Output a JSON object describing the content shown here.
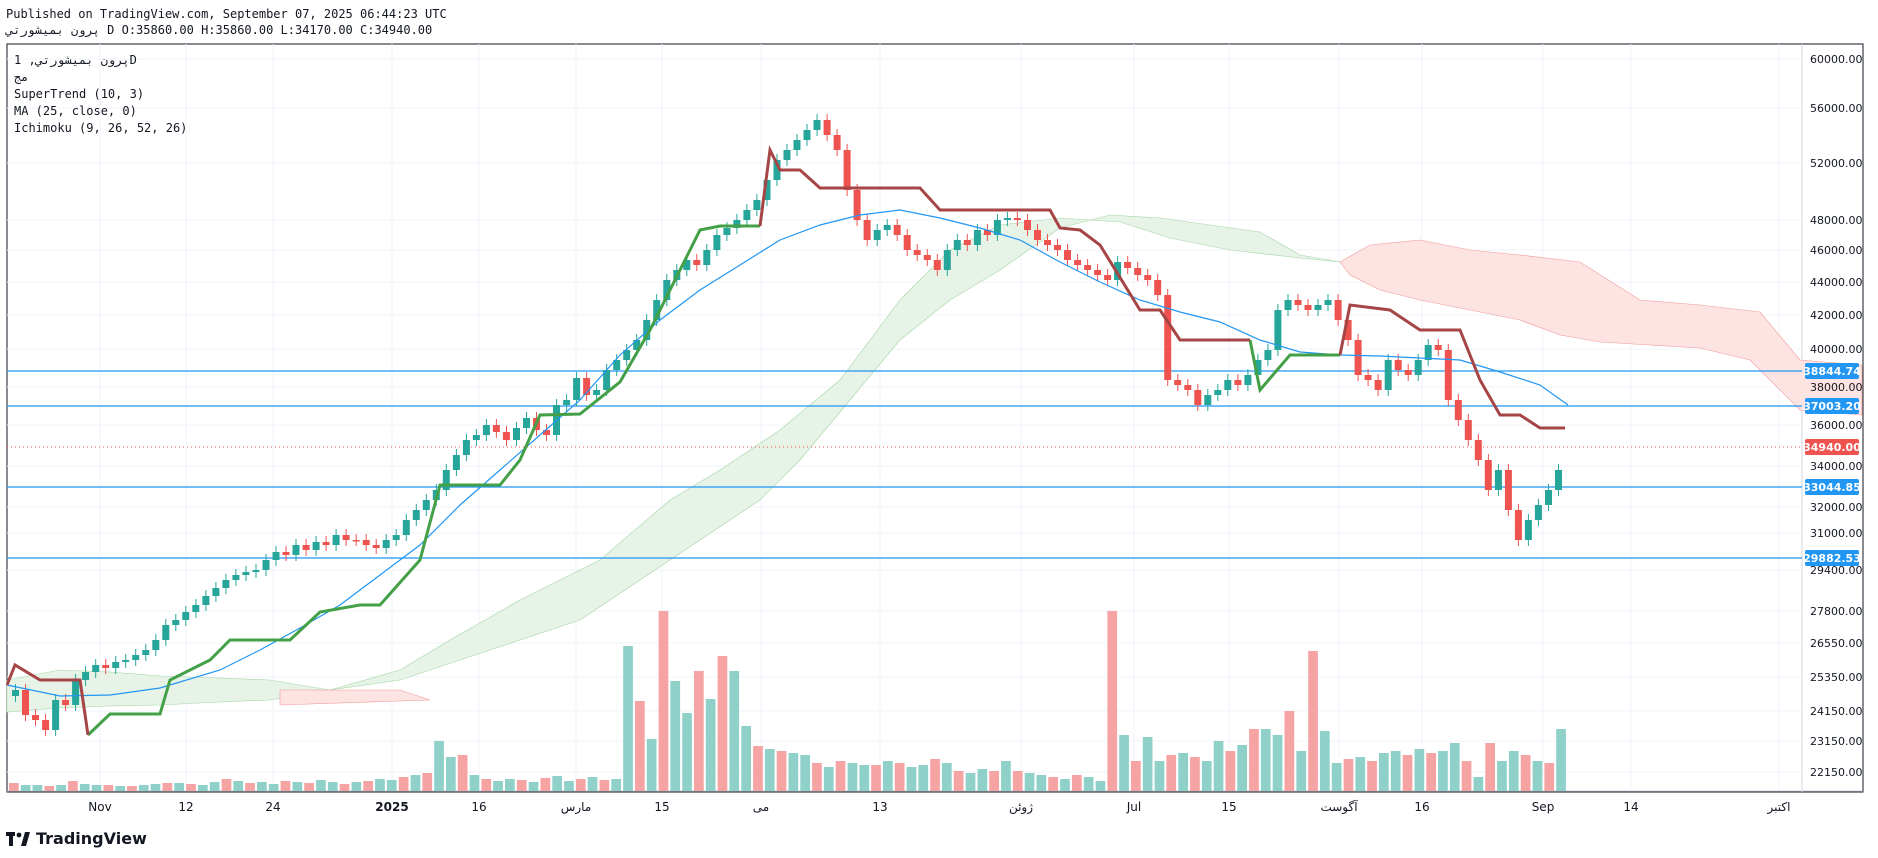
{
  "header": {
    "published": "Published on TradingView.com, September 07, 2025 06:44:23 UTC",
    "symbol_line": "پرون بمیشورتي D O:35860.00 H:35860.00 L:34170.00 C:34940.00"
  },
  "legend": {
    "symbol": "پرون بمیشورتي, 1D",
    "exchange": "مج",
    "supertrend": "SuperTrend (10, 3)",
    "ma": "MA (25, close, 0)",
    "ichimoku": "Ichimoku (9, 26, 52, 26)"
  },
  "brand": {
    "name": "TradingView",
    "icon": "tradingview-logo-icon"
  },
  "colors": {
    "up": "#26a69a",
    "down": "#ef5350",
    "up_volume": "#8fd0c9",
    "down_volume": "#f5a3a3",
    "supertrend_up": "#43a047",
    "supertrend_down": "#a54545",
    "ma": "#2196f3",
    "cloud_bull": "#e6f3e6",
    "cloud_bear": "#fde3e1",
    "hline": "#2196f3",
    "last_price": "#ef5350"
  },
  "chart_data": {
    "type": "candlestick",
    "timeframe": "1D",
    "y_ticks": [
      "60000.00",
      "56000.00",
      "52000.00",
      "48000.00",
      "46000.00",
      "44000.00",
      "42000.00",
      "40000.00",
      "38000.00",
      "36000.00",
      "34000.00",
      "32000.00",
      "31000.00",
      "29400.00",
      "27800.00",
      "26550.00",
      "25350.00",
      "24150.00",
      "23150.00",
      "22150.00"
    ],
    "x_ticks": [
      "Nov",
      "12",
      "24",
      "2025",
      "16",
      "مارس",
      "15",
      "می",
      "13",
      "ژوئن",
      "Jul",
      "15",
      "آگوست",
      "16",
      "Sep",
      "14",
      "اکتبر"
    ],
    "price_labels": [
      {
        "value": "38844.74",
        "kind": "hline"
      },
      {
        "value": "37003.20",
        "kind": "hline"
      },
      {
        "value": "34940.00",
        "kind": "last"
      },
      {
        "value": "33044.85",
        "kind": "hline"
      },
      {
        "value": "29882.53",
        "kind": "hline"
      }
    ],
    "last_close": 34940,
    "last_bar": {
      "open": 35860,
      "high": 35860,
      "low": 34170,
      "close": 34940
    },
    "grid": true
  }
}
